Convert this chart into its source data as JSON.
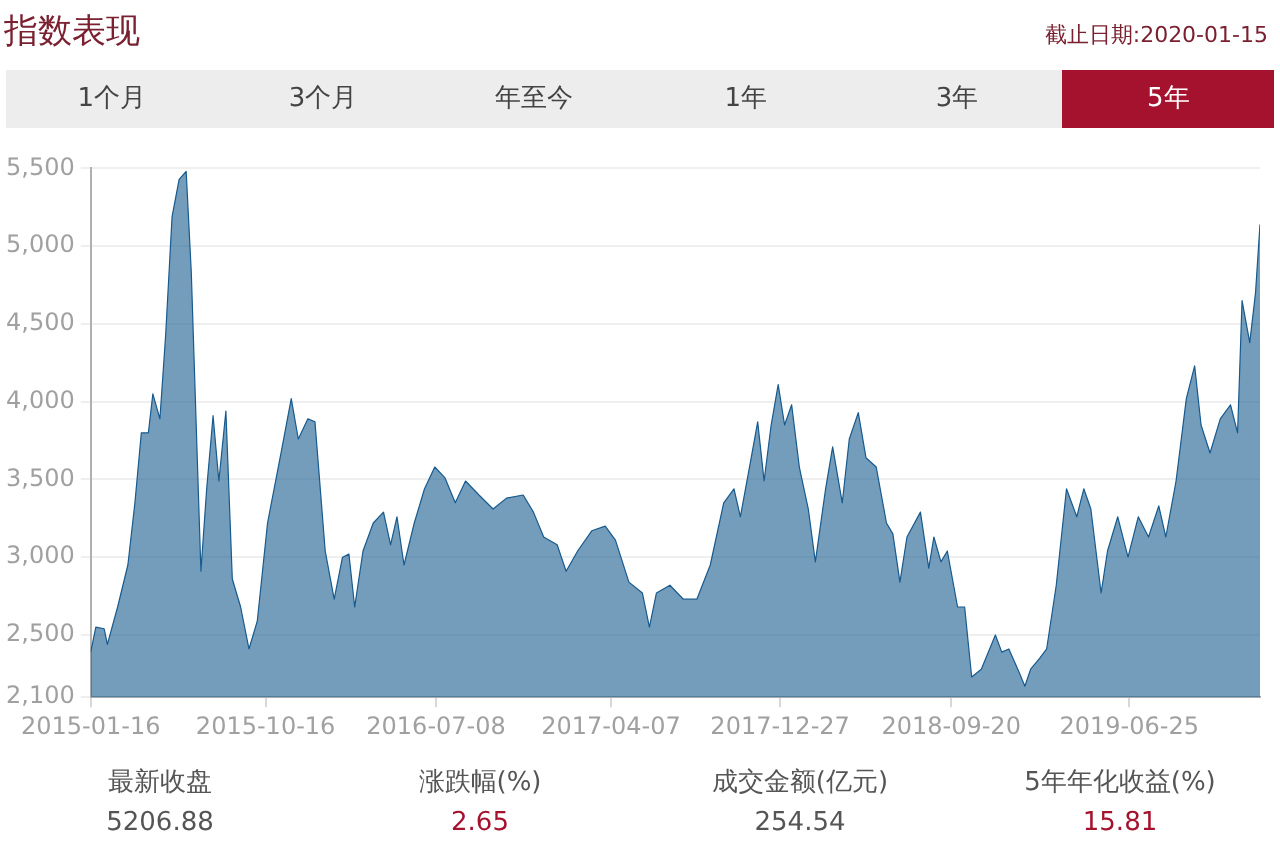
{
  "chart_data": {
    "type": "area",
    "title": "指数表现",
    "annotations": [
      "截止日期:2020-01-15",
      "1个月",
      "3个月",
      "年至今",
      "1年",
      "3年",
      "5年",
      "最新收盘",
      "5206.88",
      "涨跌幅(%)",
      "2.65",
      "成交金额(亿元)",
      "254.54",
      "5年年化收益(%)",
      "15.81"
    ],
    "xlim": [
      "2015-01-16",
      "2020-01-15"
    ],
    "xticks": [
      "2015-01-16",
      "2015-10-16",
      "2016-07-08",
      "2017-04-07",
      "2017-12-27",
      "2018-09-20",
      "2019-06-25"
    ],
    "ylim": [
      2100,
      5500
    ],
    "yticks": [
      {
        "value": 2100,
        "label": "2,100"
      },
      {
        "value": 2500,
        "label": "2,500"
      },
      {
        "value": 3000,
        "label": "3,000"
      },
      {
        "value": 3500,
        "label": "3,500"
      },
      {
        "value": 4000,
        "label": "4,000"
      },
      {
        "value": 4500,
        "label": "4,500"
      },
      {
        "value": 5000,
        "label": "5,000"
      },
      {
        "value": 5500,
        "label": "5,500"
      }
    ],
    "grid": "y",
    "legend": false,
    "marker": "none",
    "line_style": "solid",
    "x": [
      "2015-01-16",
      "2015-01-24",
      "2015-02-06",
      "2015-02-11",
      "2015-02-27",
      "2015-03-15",
      "2015-03-26",
      "2015-04-05",
      "2015-04-16",
      "2015-04-23",
      "2015-05-04",
      "2015-05-13",
      "2015-05-23",
      "2015-06-03",
      "2015-06-14",
      "2015-06-22",
      "2015-07-07",
      "2015-07-16",
      "2015-07-26",
      "2015-08-04",
      "2015-08-15",
      "2015-08-25",
      "2015-09-07",
      "2015-09-20",
      "2015-10-03",
      "2015-10-19",
      "2015-11-09",
      "2015-11-25",
      "2015-12-06",
      "2015-12-21",
      "2016-01-01",
      "2016-01-17",
      "2016-01-31",
      "2016-02-13",
      "2016-02-23",
      "2016-03-03",
      "2016-03-16",
      "2016-04-01",
      "2016-04-17",
      "2016-04-28",
      "2016-05-08",
      "2016-05-19",
      "2016-06-04",
      "2016-06-20",
      "2016-07-06",
      "2016-07-22",
      "2016-08-07",
      "2016-08-23",
      "2016-09-13",
      "2016-10-05",
      "2016-10-26",
      "2016-11-21",
      "2016-12-07",
      "2016-12-23",
      "2017-01-13",
      "2017-01-27",
      "2017-02-14",
      "2017-03-08",
      "2017-03-29",
      "2017-04-14",
      "2017-05-05",
      "2017-05-26",
      "2017-06-06",
      "2017-06-17",
      "2017-07-08",
      "2017-07-29",
      "2017-08-19",
      "2017-09-09",
      "2017-09-30",
      "2017-10-16",
      "2017-10-26",
      "2017-11-11",
      "2017-11-22",
      "2017-12-02",
      "2017-12-13",
      "2017-12-24",
      "2018-01-03",
      "2018-01-14",
      "2018-01-26",
      "2018-02-09",
      "2018-02-20",
      "2018-03-08",
      "2018-03-19",
      "2018-04-03",
      "2018-04-14",
      "2018-04-28",
      "2018-05-10",
      "2018-05-26",
      "2018-06-11",
      "2018-06-21",
      "2018-07-02",
      "2018-07-13",
      "2018-08-03",
      "2018-08-16",
      "2018-08-24",
      "2018-09-04",
      "2018-09-14",
      "2018-09-30",
      "2018-10-11",
      "2018-10-22",
      "2018-11-06",
      "2018-11-28",
      "2018-12-08",
      "2018-12-19",
      "2019-01-04",
      "2019-01-13",
      "2019-01-22",
      "2019-02-05",
      "2019-02-16",
      "2019-03-03",
      "2019-03-19",
      "2019-04-04",
      "2019-04-15",
      "2019-04-26",
      "2019-05-12",
      "2019-05-22",
      "2019-06-07",
      "2019-06-23",
      "2019-07-09",
      "2019-07-25",
      "2019-08-10",
      "2019-08-21",
      "2019-09-06",
      "2019-09-22",
      "2019-10-05",
      "2019-10-15",
      "2019-10-29",
      "2019-11-14",
      "2019-11-30",
      "2019-12-11",
      "2019-12-18",
      "2019-12-30",
      "2020-01-08",
      "2020-01-15"
    ],
    "series": [
      {
        "color": "#175a8e",
        "values": [
          2390,
          2550,
          2540,
          2440,
          2680,
          2950,
          3350,
          3800,
          3800,
          4050,
          3890,
          4430,
          5190,
          5430,
          5480,
          4830,
          2910,
          3440,
          3910,
          3490,
          3940,
          2860,
          2680,
          2410,
          2590,
          3220,
          3670,
          4020,
          3760,
          3890,
          3870,
          3040,
          2730,
          3000,
          3020,
          2680,
          3040,
          3220,
          3290,
          3080,
          3260,
          2950,
          3220,
          3440,
          3580,
          3510,
          3350,
          3490,
          3400,
          3310,
          3380,
          3400,
          3290,
          3130,
          3080,
          2910,
          3040,
          3170,
          3200,
          3110,
          2840,
          2770,
          2550,
          2770,
          2820,
          2730,
          2730,
          2950,
          3350,
          3440,
          3260,
          3620,
          3870,
          3490,
          3850,
          4110,
          3850,
          3980,
          3580,
          3310,
          2970,
          3440,
          3710,
          3350,
          3760,
          3930,
          3640,
          3580,
          3220,
          3150,
          2840,
          3130,
          3290,
          2930,
          3130,
          2970,
          3040,
          2680,
          2680,
          2230,
          2280,
          2500,
          2390,
          2410,
          2260,
          2170,
          2280,
          2350,
          2410,
          2820,
          3440,
          3260,
          3440,
          3310,
          2770,
          3040,
          3260,
          3000,
          3260,
          3130,
          3330,
          3130,
          3490,
          4020,
          4230,
          3850,
          3670,
          3890,
          3980,
          3800,
          4650,
          4380,
          4700,
          5140
        ]
      }
    ]
  }
}
